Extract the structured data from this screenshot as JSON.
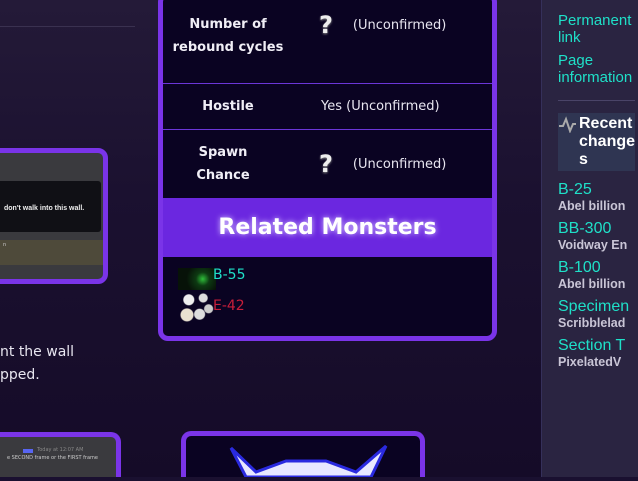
{
  "main": {
    "body_text_lines": [
      "nt the wall",
      "pped."
    ],
    "screenshot1": {
      "message": "don't walk into this wall.",
      "highlight": "n"
    },
    "screenshot2": {
      "timestamp": "Today at 12:07 AM",
      "message": "e SECOND frame or the FIRST frame"
    }
  },
  "infobox": {
    "rows": [
      {
        "label": "Number of rebound cycles",
        "icon": "question-mark-icon",
        "value": "(Unconfirmed)"
      },
      {
        "label": "Hostile",
        "value": "Yes (Unconfirmed)"
      },
      {
        "label": "Spawn Chance",
        "icon": "question-mark-icon",
        "value": "(Unconfirmed)"
      }
    ],
    "related_header": "Related Monsters",
    "related": [
      {
        "name": "B-55",
        "color": "#1fe0c8"
      },
      {
        "name": "E-42",
        "color": "#c81e3a"
      }
    ],
    "accent": "#7a34e8"
  },
  "sidebar": {
    "links": [
      "Permanent link",
      "Page information"
    ],
    "recent_heading": "Recent changes",
    "recent": [
      {
        "title": "B-25",
        "user": "Abel billion"
      },
      {
        "title": "BB-300",
        "user": "Voidway En"
      },
      {
        "title": "B-100",
        "user": "Abel billion"
      },
      {
        "title": "Specimen",
        "user": "Scribblelad"
      },
      {
        "title": "Section T",
        "user": "PixelatedV"
      }
    ]
  }
}
